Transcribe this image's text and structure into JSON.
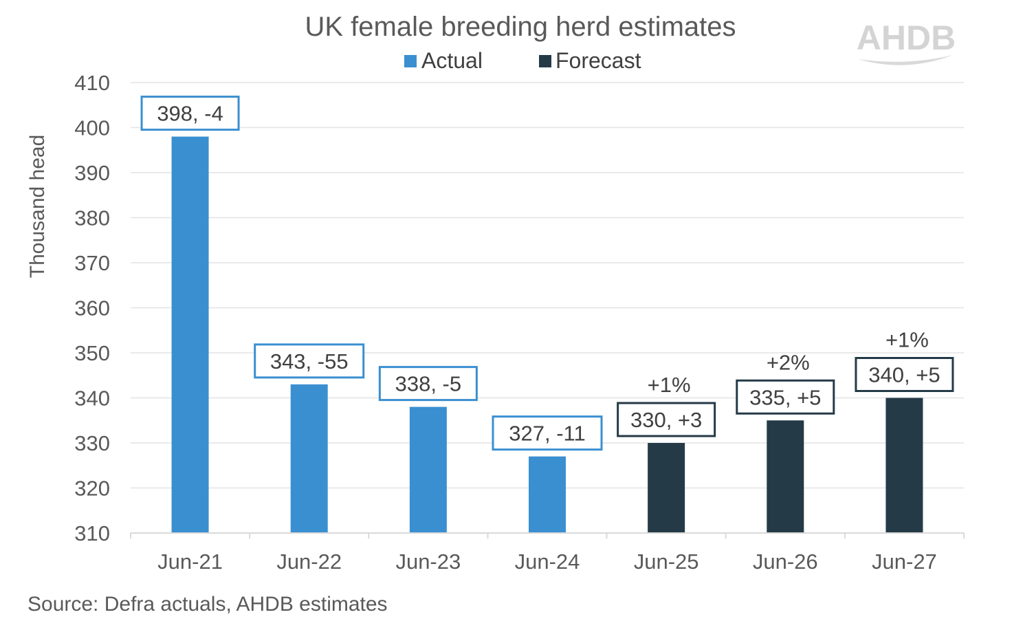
{
  "chart_data": {
    "type": "bar",
    "title": "UK female breeding herd estimates",
    "ylabel": "Thousand head",
    "xlabel": "",
    "ylim": [
      310,
      410
    ],
    "yticks": [
      310,
      320,
      330,
      340,
      350,
      360,
      370,
      380,
      390,
      400,
      410
    ],
    "grid": true,
    "legend_position": "top",
    "categories": [
      "Jun-21",
      "Jun-22",
      "Jun-23",
      "Jun-24",
      "Jun-25",
      "Jun-26",
      "Jun-27"
    ],
    "series": [
      {
        "name": "Actual",
        "color": "#3a8fd1",
        "values": [
          398,
          343,
          338,
          327,
          null,
          null,
          null
        ]
      },
      {
        "name": "Forecast",
        "color": "#243a47",
        "values": [
          null,
          null,
          null,
          null,
          330,
          335,
          340
        ]
      }
    ],
    "data_labels": [
      "398, -4",
      "343, -55",
      "338, -5",
      "327, -11",
      "330, +3",
      "335, +5",
      "340, +5"
    ],
    "annotations": [
      "",
      "",
      "",
      "",
      "+1%",
      "+2%",
      "+1%"
    ],
    "source": "Source: Defra actuals, AHDB estimates",
    "logo_text": "AHDB"
  }
}
